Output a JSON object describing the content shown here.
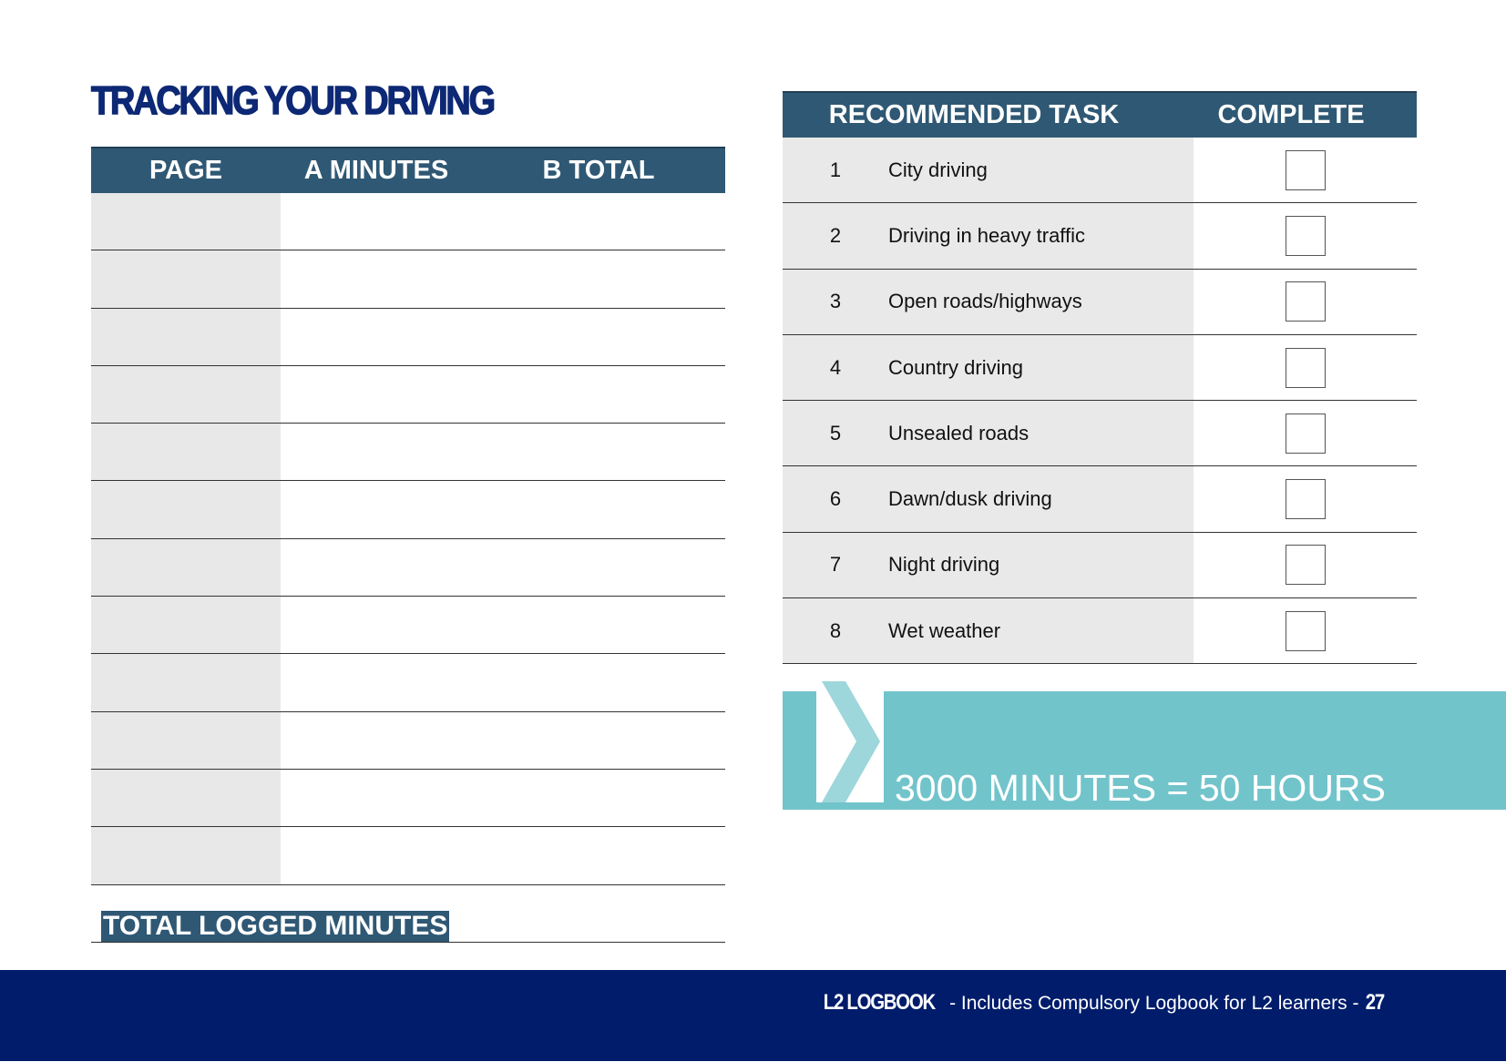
{
  "title": "TRACKING YOUR DRIVING",
  "log_table": {
    "headers": [
      "PAGE",
      "A MINUTES",
      "B TOTAL"
    ],
    "row_count": 12,
    "total_label": "TOTAL LOGGED MINUTES"
  },
  "task_table": {
    "headers": [
      "RECOMMENDED TASK",
      "COMPLETE"
    ],
    "rows": [
      {
        "n": "1",
        "task": "City driving",
        "complete": false
      },
      {
        "n": "2",
        "task": "Driving in heavy traffic",
        "complete": false
      },
      {
        "n": "3",
        "task": "Open roads/highways",
        "complete": false
      },
      {
        "n": "4",
        "task": "Country driving",
        "complete": false
      },
      {
        "n": "5",
        "task": "Unsealed roads",
        "complete": false
      },
      {
        "n": "6",
        "task": "Dawn/dusk driving",
        "complete": false
      },
      {
        "n": "7",
        "task": "Night driving",
        "complete": false
      },
      {
        "n": "8",
        "task": "Wet weather",
        "complete": false
      }
    ]
  },
  "banner": {
    "text": "3000 MINUTES = 50 HOURS",
    "color": "#72c4cb"
  },
  "footer": {
    "brand": "L2 LOGBOOK",
    "text": " - Includes Compulsory Logbook for L2 learners - ",
    "page": "27",
    "color": "#001c6b"
  }
}
